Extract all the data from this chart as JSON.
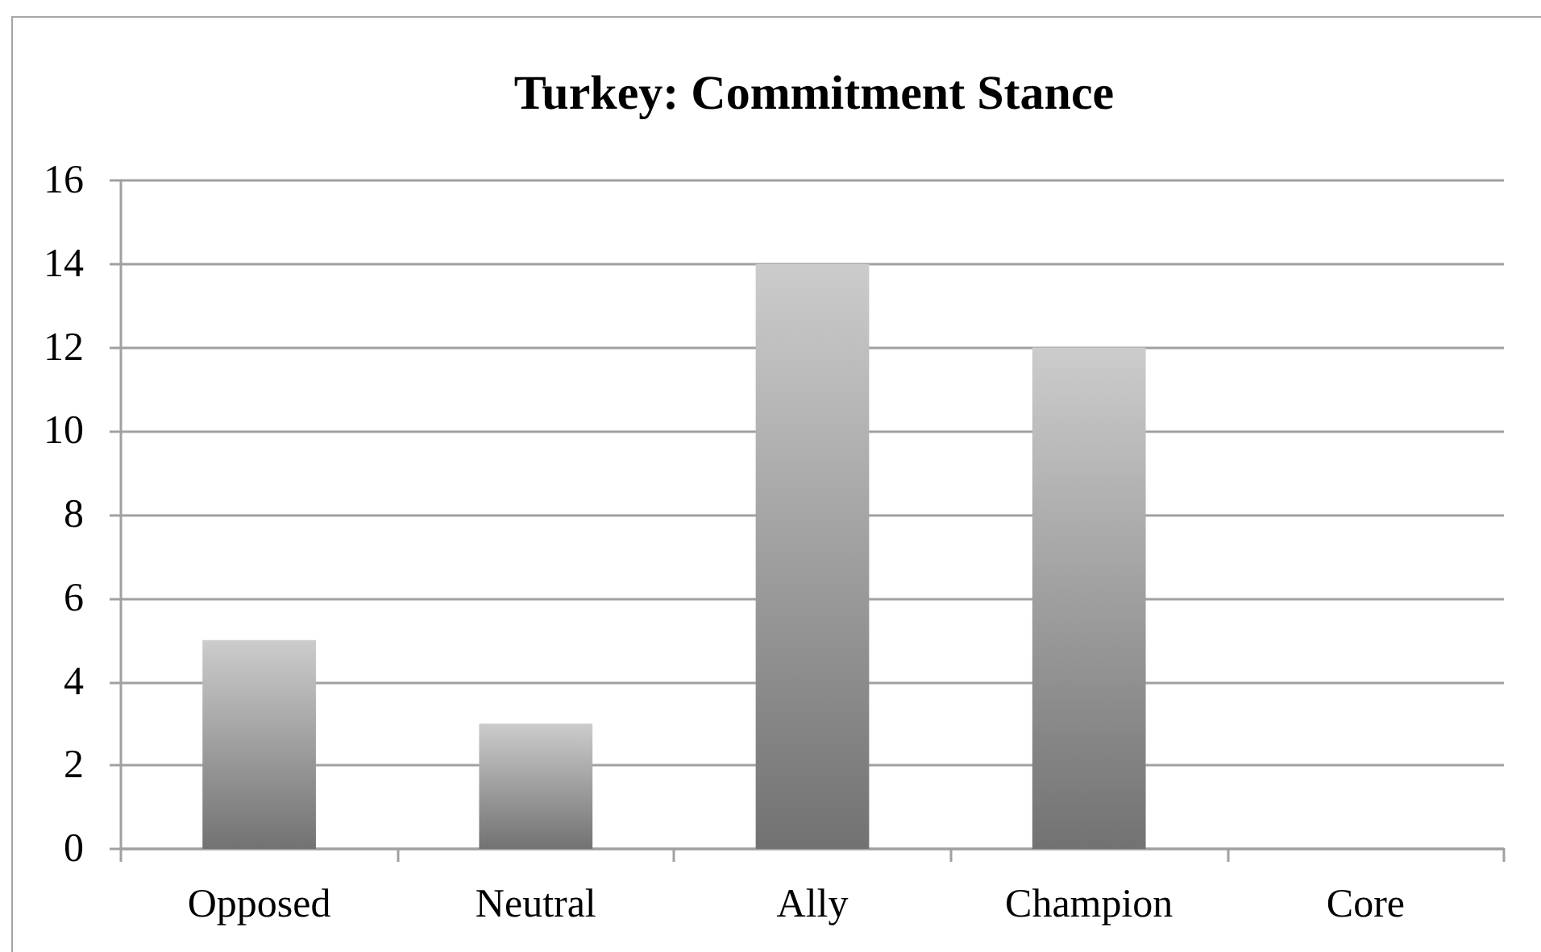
{
  "chart_data": {
    "type": "bar",
    "title": "Turkey: Commitment Stance",
    "categories": [
      "Opposed",
      "Neutral",
      "Ally",
      "Champion",
      "Core"
    ],
    "values": [
      5,
      3,
      14,
      12,
      0
    ],
    "color": "#a3a3a3",
    "ylim": [
      0,
      16
    ],
    "yticks": [
      0,
      2,
      4,
      6,
      8,
      10,
      12,
      14,
      16
    ],
    "grid": "y"
  }
}
